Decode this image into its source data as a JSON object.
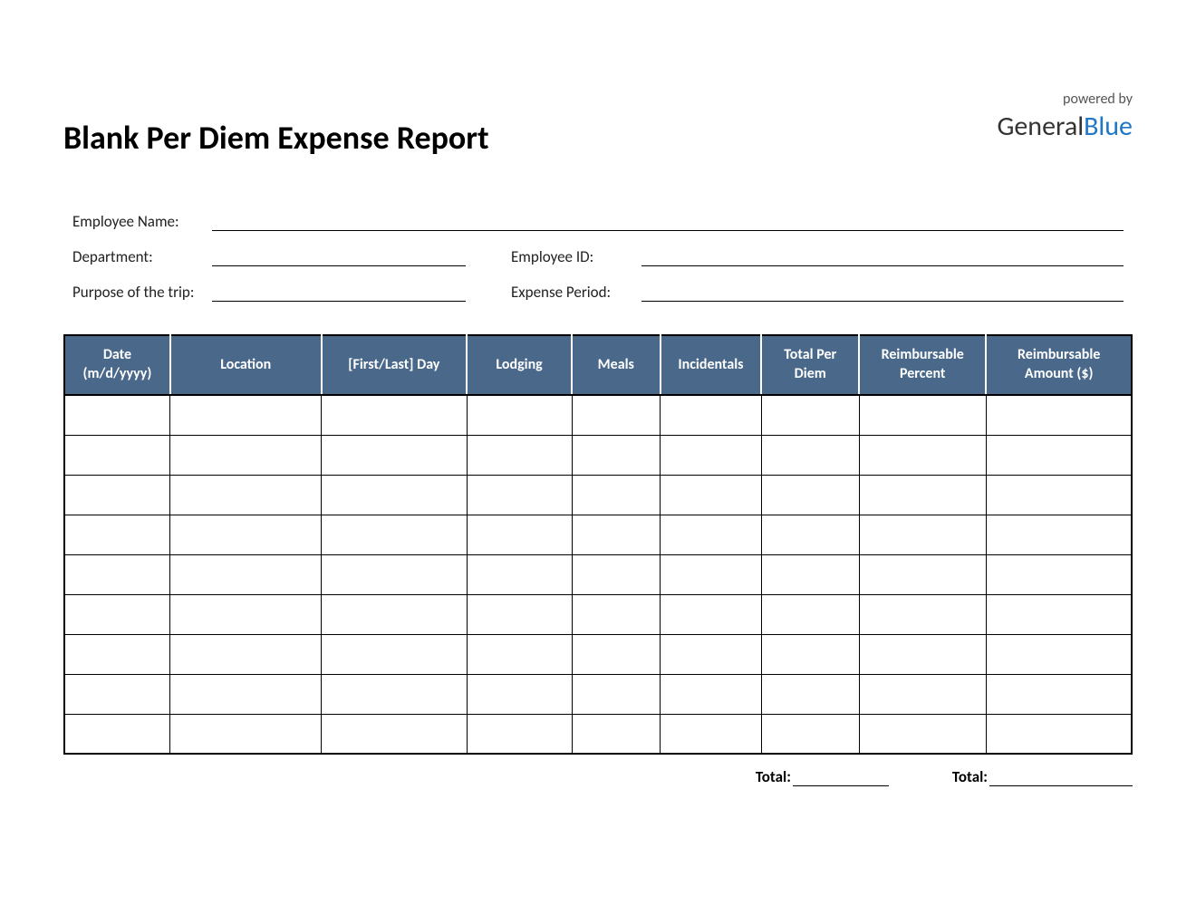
{
  "header": {
    "title": "Blank Per Diem Expense Report",
    "powered_by": "powered by",
    "brand_part1": "General",
    "brand_part2": "Blue"
  },
  "info": {
    "employee_name_label": "Employee Name:",
    "department_label": "Department:",
    "employee_id_label": "Employee ID:",
    "purpose_label": "Purpose of the trip:",
    "period_label": "Expense Period:"
  },
  "table": {
    "header_bg": "#49688a",
    "header_fg": "#ffffff",
    "border_color": "#000000",
    "columns": [
      "Date (m/d/yyyy)",
      "Location",
      "[First/Last] Day",
      "Lodging",
      "Meals",
      "Incidentals",
      "Total Per Diem",
      "Reimbursable Percent",
      "Reimbursable Amount ($)"
    ],
    "row_count": 9
  },
  "totals": {
    "label1": "Total:",
    "label2": "Total:"
  }
}
